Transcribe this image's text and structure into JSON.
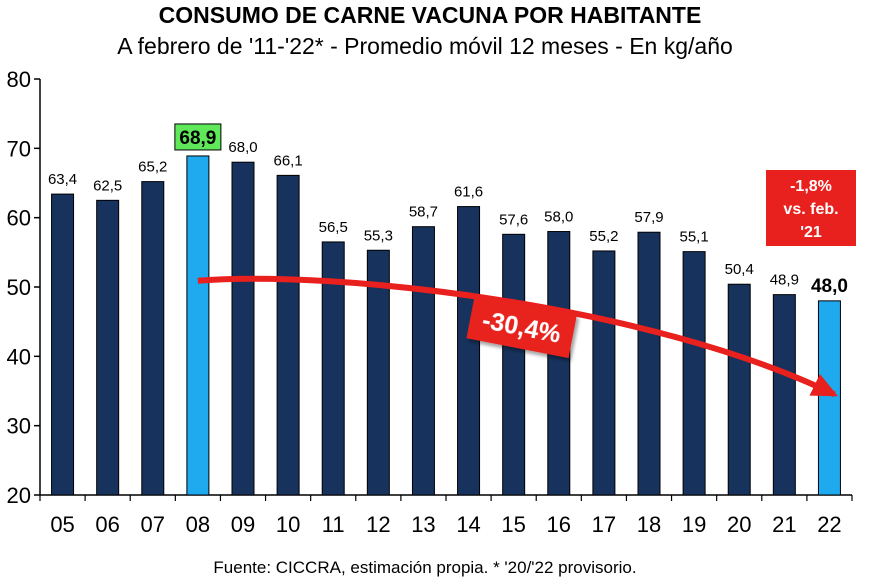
{
  "chart_data": {
    "type": "bar",
    "title": "CONSUMO DE CARNE VACUNA POR HABITANTE",
    "subtitle": "A febrero de '11-'22* - Promedio móvil 12 meses -  En kg/año",
    "categories": [
      "05",
      "06",
      "07",
      "08",
      "09",
      "10",
      "11",
      "12",
      "13",
      "14",
      "15",
      "16",
      "17",
      "18",
      "19",
      "20",
      "21",
      "22"
    ],
    "values": [
      63.4,
      62.5,
      65.2,
      68.9,
      68.0,
      66.1,
      56.5,
      55.3,
      58.7,
      61.6,
      57.6,
      58.0,
      55.2,
      57.9,
      55.1,
      50.4,
      48.9,
      48.0
    ],
    "value_labels": [
      "63,4",
      "62,5",
      "65,2",
      "68,9",
      "68,0",
      "66,1",
      "56,5",
      "55,3",
      "58,7",
      "61,6",
      "57,6",
      "58,0",
      "55,2",
      "57,9",
      "55,1",
      "50,4",
      "48,9",
      "48,0"
    ],
    "highlighted_categories": [
      "08",
      "22"
    ],
    "ylim": [
      20,
      80
    ],
    "yticks": [
      20,
      30,
      40,
      50,
      60,
      70,
      80
    ],
    "grid": false,
    "legend": "none",
    "annotations": {
      "trend_arrow": {
        "from": "08",
        "to": "22",
        "label": "-30,4%"
      },
      "callout": {
        "lines": [
          "-1,8%",
          "vs. feb.",
          "'21"
        ]
      }
    },
    "source": "Fuente: CICCRA, estimación propia. * '20/'22 provisorio."
  },
  "colors": {
    "bar": "#17325c",
    "bar_highlight": "#1fa9ee",
    "max_label_bg": "#5ee85a",
    "annotation_red": "#e8201e",
    "axis": "#000000"
  }
}
